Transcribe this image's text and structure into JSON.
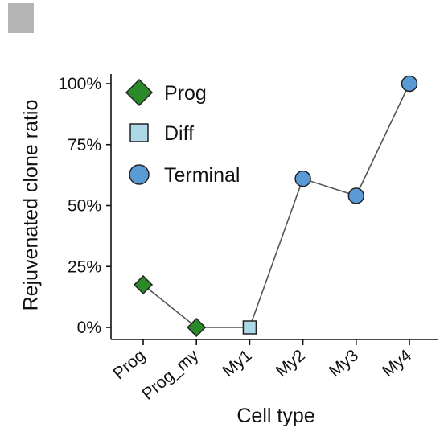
{
  "chart_data": {
    "type": "line",
    "title": "",
    "xlabel": "Cell type",
    "ylabel": "Rejuvenated clone ratio",
    "categories": [
      "Prog",
      "Prog_my",
      "My1",
      "My2",
      "My3",
      "My4"
    ],
    "values": [
      0.175,
      0.0,
      0.0,
      0.61,
      0.54,
      1.0
    ],
    "point_groups": [
      "Prog",
      "Prog",
      "Diff",
      "Terminal",
      "Terminal",
      "Terminal"
    ],
    "ylim": [
      0,
      1
    ],
    "yticks": [
      0,
      0.25,
      0.5,
      0.75,
      1.0
    ],
    "ytick_labels": [
      "0%",
      "25%",
      "50%",
      "75%",
      "100%"
    ],
    "grid": false,
    "legend_position": "top-left",
    "legend": [
      {
        "label": "Prog",
        "marker": "diamond",
        "color": "#2a8a2a"
      },
      {
        "label": "Diff",
        "marker": "square",
        "color": "#add8e6"
      },
      {
        "label": "Terminal",
        "marker": "circle",
        "color": "#5b9bd5"
      }
    ],
    "line_color": "#555555"
  }
}
